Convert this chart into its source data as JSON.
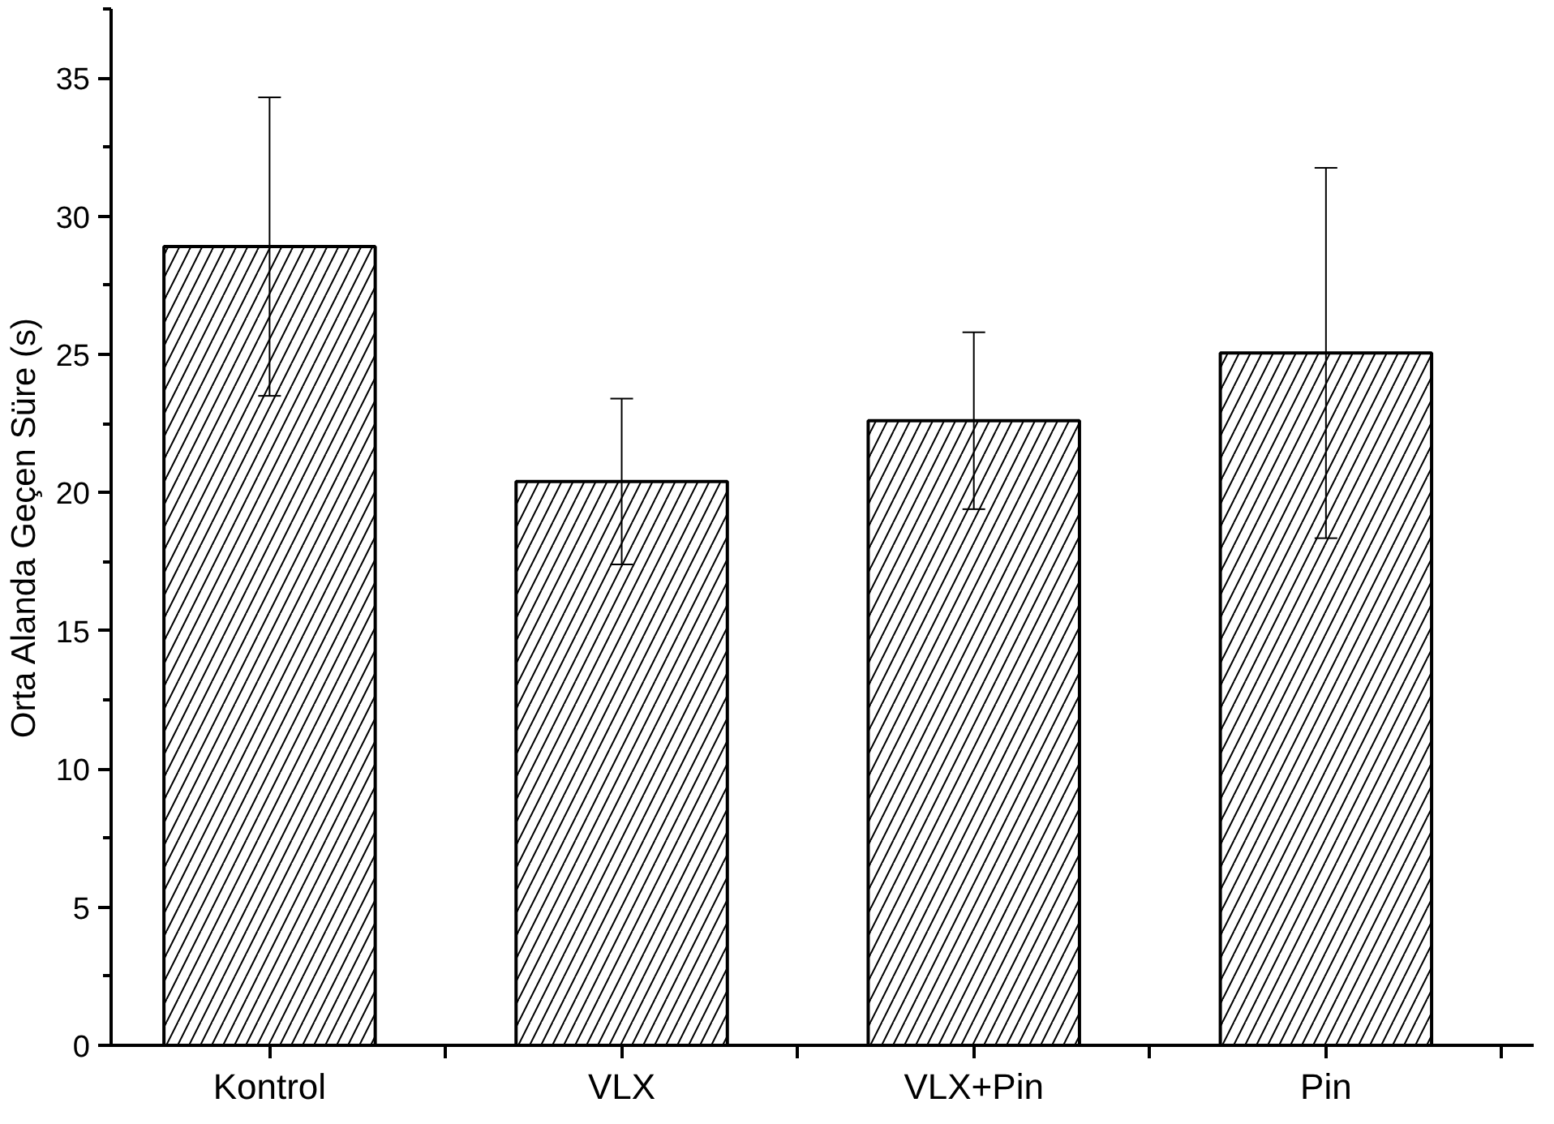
{
  "chart_data": {
    "type": "bar",
    "ylabel": "Orta Alanda Geçen Süre (s)",
    "categories": [
      "Kontrol",
      "VLX",
      "VLX+Pin",
      "Pin"
    ],
    "values": [
      28.9,
      20.4,
      22.6,
      25.05
    ],
    "errors": [
      5.4,
      3.0,
      3.2,
      6.7
    ],
    "color": "#ffffff",
    "ylim": [
      0,
      37.5
    ],
    "yticks": [
      0,
      5,
      10,
      15,
      20,
      25,
      30,
      35
    ],
    "grid": false
  }
}
